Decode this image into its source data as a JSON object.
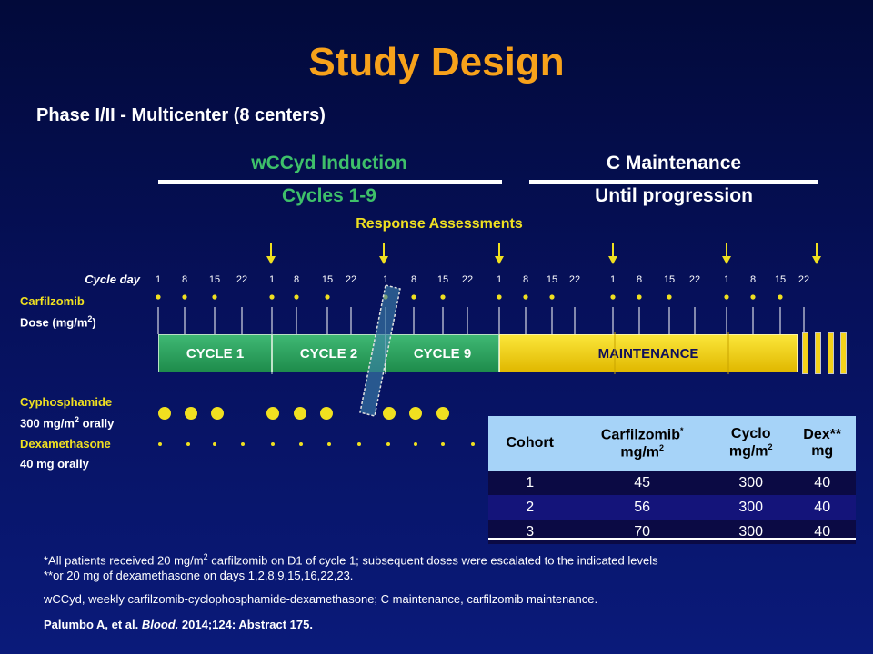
{
  "title": "Study Design",
  "subtitle": "Phase I/II - Multicenter  (8 centers)",
  "phases": {
    "induction": {
      "name": "wCCyd Induction",
      "cycles": "Cycles 1-9"
    },
    "maintenance": {
      "name": "C Maintenance",
      "duration": "Until progression"
    }
  },
  "response_assessments": "Response Assessments",
  "cycle_day_label": "Cycle day",
  "cycle_days": [
    "1",
    "8",
    "15",
    "22",
    "1",
    "8",
    "15",
    "22",
    "1",
    "8",
    "15",
    "22",
    "1",
    "8",
    "15",
    "22",
    "1",
    "8",
    "15",
    "22",
    "1",
    "8",
    "15",
    "22"
  ],
  "carfilzomib_label": "Carfilzomib",
  "dose_label": "Dose (mg/m",
  "dose_sup": "2",
  "dose_close": ")",
  "cycles": [
    "CYCLE 1",
    "CYCLE 2",
    "CYCLE 9"
  ],
  "maintenance_label": "MAINTENANCE",
  "cyclophosphamide": {
    "name": "Cyphosphamide",
    "dose": "300 mg/m",
    "sup": "2",
    "route": " orally"
  },
  "dexamethasone": {
    "name": "Dexamethasone",
    "dose": "40 mg orally"
  },
  "cohort_table": {
    "headers": [
      {
        "line1": "Cohort",
        "line1_sup": "",
        "line2": "",
        "line2_sup": ""
      },
      {
        "line1": "Carfilzomib",
        "line1_sup": "*",
        "line2": "mg/m",
        "line2_sup": "2"
      },
      {
        "line1": "Cyclo",
        "line1_sup": "",
        "line2": "mg/m",
        "line2_sup": "2"
      },
      {
        "line1": "Dex**",
        "line1_sup": "",
        "line2": "mg",
        "line2_sup": ""
      }
    ],
    "rows": [
      [
        "1",
        "45",
        "300",
        "40"
      ],
      [
        "2",
        "56",
        "300",
        "40"
      ],
      [
        "3",
        "70",
        "300",
        "40"
      ]
    ]
  },
  "footnotes": {
    "note1_pre": "*All patients received 20 mg/m",
    "note1_sup": "2",
    "note1_post": " carfilzomib on D1 of cycle 1; subsequent doses were escalated to the indicated levels",
    "note2": "**or 20 mg of dexamethasone on days 1,2,8,9,15,16,22,23.",
    "abbrev": "wCCyd, weekly carfilzomib-cyclophosphamide-dexamethasone;  C maintenance,  carfilzomib maintenance.",
    "citation_pre": "Palumbo A,  et al. ",
    "citation_journal": "Blood.",
    "citation_post": " 2014;124: Abstract  175."
  },
  "colors": {
    "title": "#f7a21b",
    "induction_green": "#3ec06a",
    "accent_yellow": "#f0e020",
    "table_header": "#a6d3f8"
  }
}
